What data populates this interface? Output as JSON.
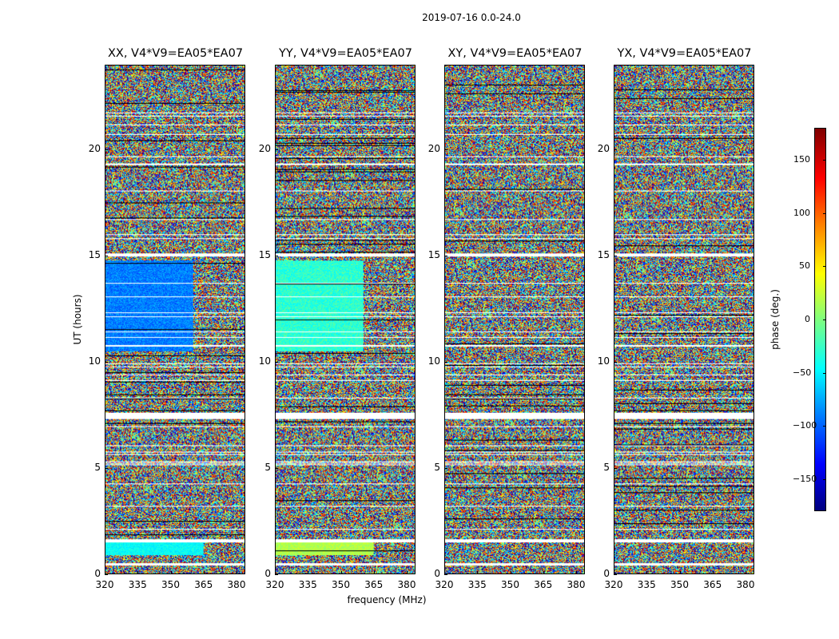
{
  "chart_data": {
    "type": "heatmap",
    "suptitle": "2019-07-16 0.0-24.0",
    "panels": [
      {
        "title": "XX, V4*V9=EA05*EA07",
        "pol": "XX"
      },
      {
        "title": "YY, V4*V9=EA05*EA07",
        "pol": "YY"
      },
      {
        "title": "XY, V4*V9=EA05*EA07",
        "pol": "XY"
      },
      {
        "title": "YX, V4*V9=EA05*EA07",
        "pol": "YX"
      }
    ],
    "xlabel": "frequency (MHz)",
    "ylabel": "UT (hours)",
    "x_ticks": [
      "320",
      "335",
      "350",
      "365",
      "380"
    ],
    "x_tick_values": [
      320,
      335,
      350,
      365,
      380
    ],
    "xlim": [
      320,
      384
    ],
    "y_ticks": [
      "0",
      "5",
      "10",
      "15",
      "20"
    ],
    "y_tick_values": [
      0,
      5,
      10,
      15,
      20
    ],
    "ylim": [
      0,
      24
    ],
    "colorbar": {
      "label": "phase (deg.)",
      "ticks": [
        "−150",
        "−100",
        "−50",
        "0",
        "50",
        "100",
        "150"
      ],
      "tick_values": [
        -150,
        -100,
        -50,
        0,
        50,
        100,
        150
      ],
      "range": [
        -180,
        180
      ],
      "colormap": "jet"
    }
  }
}
